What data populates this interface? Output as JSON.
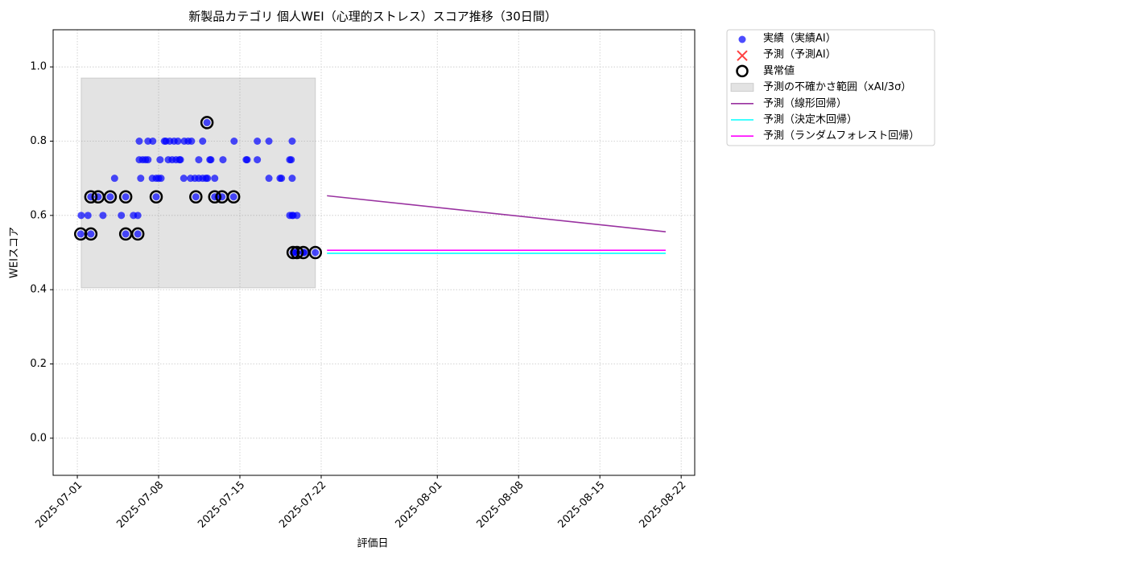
{
  "chart_data": {
    "type": "scatter",
    "title": "新製品カテゴリ 個人WEI（心理的ストレス）スコア推移（30日間）",
    "xlabel": "評価日",
    "ylabel": "WEIスコア",
    "xlim": [
      "2025-06-28T22:00",
      "2025-08-23T04:00"
    ],
    "ylim": [
      -0.1,
      1.1
    ],
    "xticks": [
      "2025-07-01",
      "2025-07-08",
      "2025-07-15",
      "2025-07-22",
      "2025-08-01",
      "2025-08-08",
      "2025-08-15",
      "2025-08-22"
    ],
    "yticks": [
      {
        "value": 0,
        "label": "0.0"
      },
      0.2,
      0.4,
      0.6,
      0.8,
      {
        "value": 1,
        "label": "1.0"
      }
    ],
    "grid": true,
    "legend": "outside upper right",
    "series": [
      {
        "name": "実績（実績AI）",
        "type": "scatter",
        "color": "#0000ff",
        "x": [
          "2025-07-01T07:00",
          "2025-07-01T08:00",
          "2025-07-01T22:00",
          "2025-07-02T04:00",
          "2025-07-02T04:00",
          "2025-07-02T19:00",
          "2025-07-03T05:00",
          "2025-07-03T20:00",
          "2025-07-04T05:00",
          "2025-07-04T19:00",
          "2025-07-05T04:00",
          "2025-07-05T04:00",
          "2025-07-05T20:00",
          "2025-07-06T05:00",
          "2025-07-06T05:00",
          "2025-07-06T08:00",
          "2025-07-06T08:00",
          "2025-07-06T11:00",
          "2025-07-06T15:00",
          "2025-07-06T21:00",
          "2025-07-07T02:00",
          "2025-07-07T02:00",
          "2025-07-07T11:00",
          "2025-07-07T12:00",
          "2025-07-07T19:00",
          "2025-07-07T19:00",
          "2025-07-08T00:00",
          "2025-07-08T03:00",
          "2025-07-08T05:00",
          "2025-07-08T12:00",
          "2025-07-08T15:00",
          "2025-07-08T20:00",
          "2025-07-08T23:00",
          "2025-07-09T04:00",
          "2025-07-09T08:00",
          "2025-07-09T12:00",
          "2025-07-09T16:00",
          "2025-07-09T19:00",
          "2025-07-09T21:00",
          "2025-07-10T04:00",
          "2025-07-10T05:00",
          "2025-07-10T13:00",
          "2025-07-10T18:00",
          "2025-07-10T20:00",
          "2025-07-11T03:00",
          "2025-07-11T05:00",
          "2025-07-11T11:00",
          "2025-07-11T11:00",
          "2025-07-11T19:00",
          "2025-07-11T19:00",
          "2025-07-12T02:00",
          "2025-07-12T04:00",
          "2025-07-12T05:00",
          "2025-07-12T10:00",
          "2025-07-12T12:00",
          "2025-07-12T20:00",
          "2025-07-12T20:00",
          "2025-07-13T03:00",
          "2025-07-13T11:00",
          "2025-07-13T13:00",
          "2025-07-14T11:00",
          "2025-07-14T12:00",
          "2025-07-15T13:00",
          "2025-07-15T15:00",
          "2025-07-16T12:00",
          "2025-07-16T12:00",
          "2025-07-17T12:00",
          "2025-07-17T12:00",
          "2025-07-18T11:00",
          "2025-07-18T14:00",
          "2025-07-19T07:00",
          "2025-07-19T10:00",
          "2025-07-19T12:00",
          "2025-07-19T12:00",
          "2025-07-19T12:00",
          "2025-07-19T14:00",
          "2025-07-19T07:00",
          "2025-07-19T14:00",
          "2025-07-19T22:00",
          "2025-07-19T19:00",
          "2025-07-19T22:00",
          "2025-07-20T11:00",
          "2025-07-20T13:00",
          "2025-07-21T12:00"
        ],
        "values": [
          0.55,
          0.6,
          0.6,
          0.55,
          0.65,
          0.65,
          0.6,
          0.65,
          0.7,
          0.6,
          0.55,
          0.65,
          0.6,
          0.6,
          0.55,
          0.8,
          0.75,
          0.7,
          0.75,
          0.75,
          0.8,
          0.75,
          0.7,
          0.8,
          0.65,
          0.7,
          0.7,
          0.75,
          0.7,
          0.8,
          0.8,
          0.75,
          0.8,
          0.75,
          0.8,
          0.75,
          0.8,
          0.75,
          0.75,
          0.7,
          0.8,
          0.8,
          0.7,
          0.8,
          0.7,
          0.65,
          0.75,
          0.7,
          0.8,
          0.7,
          0.7,
          0.85,
          0.7,
          0.75,
          0.75,
          0.7,
          0.65,
          0.65,
          0.65,
          0.75,
          0.65,
          0.8,
          0.75,
          0.75,
          0.8,
          0.75,
          0.8,
          0.7,
          0.7,
          0.7,
          0.75,
          0.75,
          0.8,
          0.7,
          0.6,
          0.5,
          0.6,
          0.6,
          0.6,
          0.5,
          0.5,
          0.5,
          0.5,
          0.5
        ]
      },
      {
        "name": "予測（予測AI）",
        "type": "cross",
        "color": "#ff0000",
        "x": [],
        "values": []
      },
      {
        "name": "異常値",
        "type": "anomaly",
        "color": "#000000",
        "x": [
          "2025-07-01T07:00",
          "2025-07-02T04:00",
          "2025-07-02T04:00",
          "2025-07-02T19:00",
          "2025-07-03T20:00",
          "2025-07-05T04:00",
          "2025-07-05T04:00",
          "2025-07-06T05:00",
          "2025-07-07T19:00",
          "2025-07-11T05:00",
          "2025-07-12T04:00",
          "2025-07-12T20:00",
          "2025-07-13T11:00",
          "2025-07-14T11:00",
          "2025-07-19T14:00",
          "2025-07-19T22:00",
          "2025-07-20T11:00",
          "2025-07-21T12:00"
        ],
        "values": [
          0.55,
          0.65,
          0.55,
          0.65,
          0.65,
          0.65,
          0.55,
          0.55,
          0.65,
          0.65,
          0.85,
          0.65,
          0.65,
          0.65,
          0.5,
          0.5,
          0.5,
          0.5
        ]
      },
      {
        "name": "予測の不確かさ範囲（xAI/3σ）",
        "type": "band",
        "color": "#808080",
        "x": [
          "2025-07-01T08:00",
          "2025-07-21T12:00"
        ],
        "lower": [
          0.405,
          0.405
        ],
        "upper": [
          0.97,
          0.97
        ]
      },
      {
        "name": "予測（線形回帰）",
        "type": "line",
        "color": "#9932a0",
        "x": [
          "2025-07-22T12:00",
          "2025-08-20T16:00"
        ],
        "values": [
          0.653,
          0.556
        ]
      },
      {
        "name": "予測（決定木回帰）",
        "type": "line",
        "color": "#00ffff",
        "x": [
          "2025-07-22T12:00",
          "2025-08-20T16:00"
        ],
        "values": [
          0.498,
          0.498
        ]
      },
      {
        "name": "予測（ランダムフォレスト回帰）",
        "type": "line",
        "color": "#ff00ff",
        "x": [
          "2025-07-22T12:00",
          "2025-08-20T16:00"
        ],
        "values": [
          0.506,
          0.506
        ]
      }
    ]
  }
}
